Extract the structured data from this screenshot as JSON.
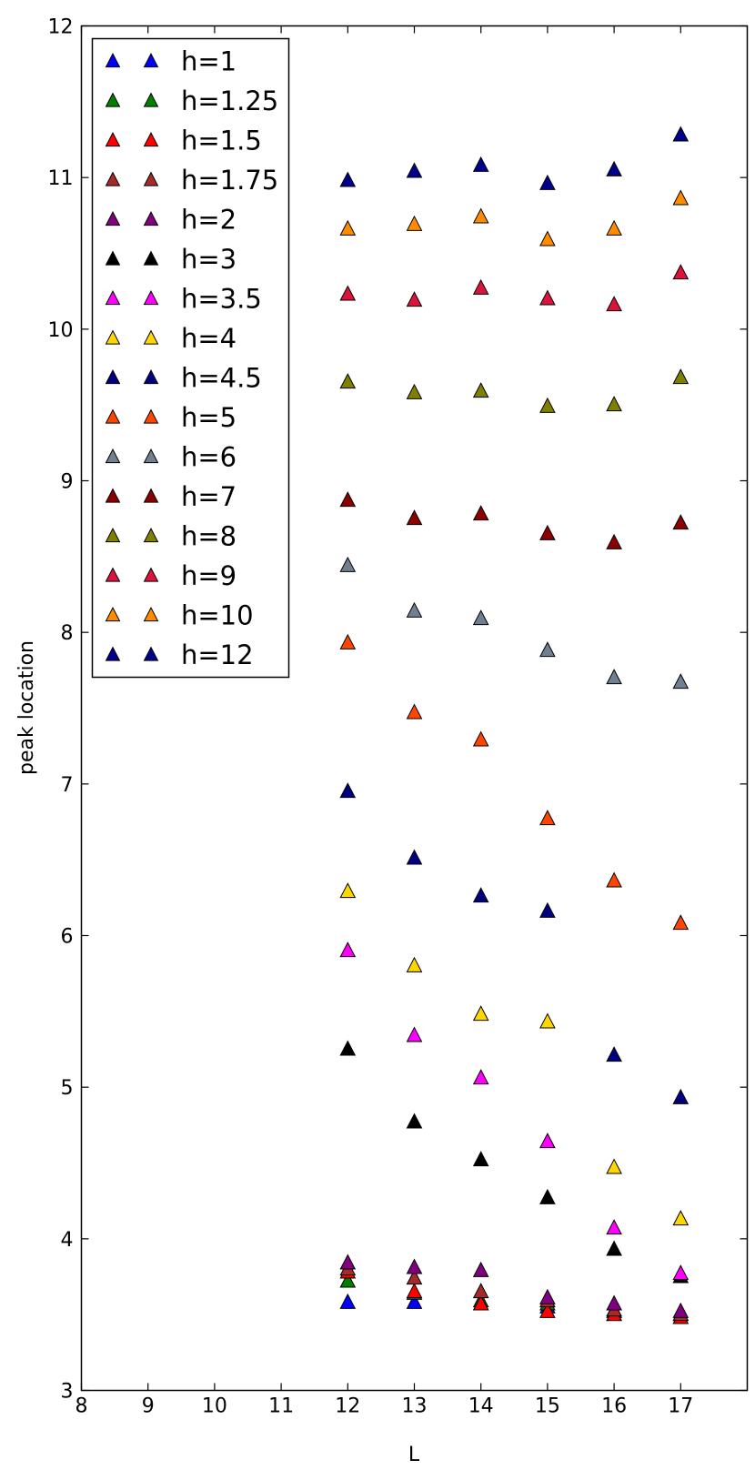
{
  "chart_data": {
    "type": "scatter",
    "title": "",
    "xlabel": "L",
    "ylabel": "peak location",
    "xlim": [
      8,
      18
    ],
    "ylim": [
      3,
      12
    ],
    "xticks": [
      "8",
      "9",
      "10",
      "11",
      "12",
      "13",
      "14",
      "15",
      "16",
      "17"
    ],
    "yticks": [
      "3",
      "4",
      "5",
      "6",
      "7",
      "8",
      "9",
      "10",
      "11",
      "12"
    ],
    "grid": false,
    "legend_position": "upper-left",
    "marker": "triangle",
    "x": [
      12,
      13,
      14,
      15,
      16,
      17
    ],
    "series": [
      {
        "name": "h=1",
        "color": "#0000ff",
        "values": [
          3.58,
          3.58,
          3.57,
          3.55,
          3.5,
          3.48
        ]
      },
      {
        "name": "h=1.25",
        "color": "#008000",
        "values": [
          3.72,
          3.64,
          3.59,
          3.57,
          3.52,
          3.5
        ]
      },
      {
        "name": "h=1.5",
        "color": "#ff0000",
        "values": [
          3.78,
          3.65,
          3.57,
          3.52,
          3.5,
          3.48
        ]
      },
      {
        "name": "h=1.75",
        "color": "#a52a2a",
        "values": [
          3.8,
          3.74,
          3.65,
          3.59,
          3.53,
          3.5
        ]
      },
      {
        "name": "h=2",
        "color": "#800080",
        "values": [
          3.84,
          3.81,
          3.79,
          3.61,
          3.57,
          3.52
        ]
      },
      {
        "name": "h=3",
        "color": "#000000",
        "values": [
          5.25,
          4.77,
          4.52,
          4.27,
          3.93,
          3.75
        ]
      },
      {
        "name": "h=3.5",
        "color": "#ff00ff",
        "values": [
          5.9,
          5.34,
          5.06,
          4.64,
          4.07,
          3.77
        ]
      },
      {
        "name": "h=4",
        "color": "#ffd700",
        "values": [
          6.29,
          5.8,
          5.48,
          5.43,
          4.47,
          4.13
        ]
      },
      {
        "name": "h=4.5",
        "color": "#000080",
        "values": [
          6.95,
          6.51,
          6.26,
          6.16,
          5.21,
          4.93
        ]
      },
      {
        "name": "h=5",
        "color": "#ff4500",
        "values": [
          7.93,
          7.47,
          7.29,
          6.77,
          6.36,
          6.08
        ]
      },
      {
        "name": "h=6",
        "color": "#708090",
        "values": [
          8.44,
          8.14,
          8.09,
          7.88,
          7.7,
          7.67
        ]
      },
      {
        "name": "h=7",
        "color": "#8b0000",
        "values": [
          8.87,
          8.75,
          8.78,
          8.65,
          8.59,
          8.72
        ]
      },
      {
        "name": "h=8",
        "color": "#808000",
        "values": [
          9.65,
          9.58,
          9.59,
          9.49,
          9.5,
          9.68
        ]
      },
      {
        "name": "h=9",
        "color": "#dc143c",
        "values": [
          10.23,
          10.19,
          10.27,
          10.2,
          10.16,
          10.37
        ]
      },
      {
        "name": "h=10",
        "color": "#ff8c00",
        "values": [
          10.66,
          10.69,
          10.74,
          10.59,
          10.66,
          10.86
        ]
      },
      {
        "name": "h=12",
        "color": "#00008b",
        "values": [
          10.98,
          11.04,
          11.08,
          10.96,
          11.05,
          11.28
        ]
      }
    ]
  }
}
